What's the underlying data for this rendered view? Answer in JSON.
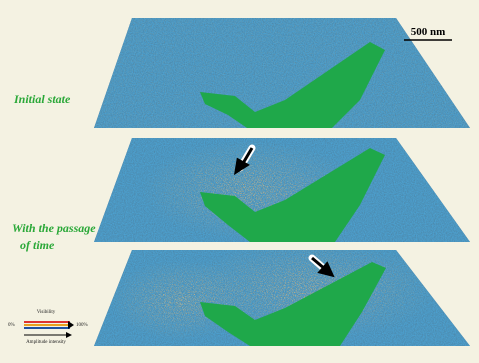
{
  "scale_bar": "500 nm",
  "panel_labels": {
    "initial": "Initial state",
    "passage_line1": "With the passage",
    "passage_line2": "of time"
  },
  "legend": {
    "top": "Visibility",
    "left": "0%",
    "right": "100%",
    "bottom": "Amplitude intensity"
  }
}
